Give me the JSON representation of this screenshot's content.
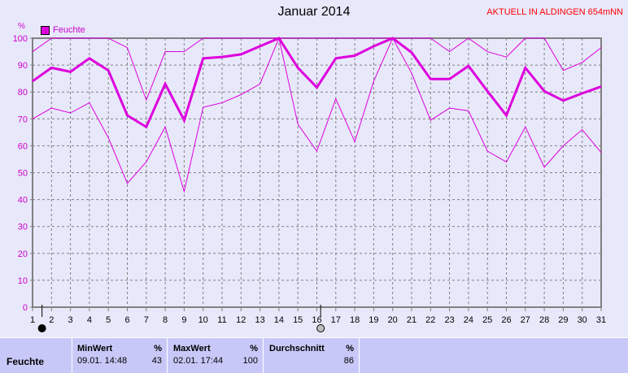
{
  "header": {
    "title": "Januar 2014",
    "station": "AKTUELL IN ALDINGEN 654mNN"
  },
  "colors": {
    "series": "#dd00dd",
    "background": "#e8e8fb",
    "grid": "#808080",
    "station": "#ff0000",
    "table": "#c8c8f8"
  },
  "chart_data": {
    "type": "line",
    "title": "Januar 2014",
    "ylabel": "%",
    "legend": {
      "label": "Feuchte",
      "placement": "top-left"
    },
    "xlim": [
      1,
      31
    ],
    "ylim": [
      0,
      100
    ],
    "x": [
      1,
      2,
      3,
      4,
      5,
      6,
      7,
      8,
      9,
      10,
      11,
      12,
      13,
      14,
      15,
      16,
      17,
      18,
      19,
      20,
      21,
      22,
      23,
      24,
      25,
      26,
      27,
      28,
      29,
      30,
      31
    ],
    "yticks": [
      0,
      10,
      20,
      30,
      40,
      50,
      60,
      70,
      80,
      90,
      100
    ],
    "grid": true,
    "series": [
      {
        "role": "max",
        "values": [
          95,
          100,
          100,
          100,
          100,
          96.5,
          77,
          95,
          95,
          100,
          100,
          100,
          100,
          100,
          100,
          100,
          100,
          100,
          100,
          100,
          100,
          100,
          95,
          100,
          95,
          93,
          100,
          100,
          88,
          91,
          96.5
        ]
      },
      {
        "role": "average",
        "values": [
          84,
          89,
          87.5,
          92.5,
          88,
          71.3,
          67,
          83,
          69.5,
          92.5,
          93,
          94,
          97,
          100,
          89,
          81.7,
          92.5,
          93.5,
          97,
          100,
          94.7,
          84.8,
          84.8,
          89.7,
          80.3,
          71.3,
          89,
          80.3,
          76.8,
          79.5,
          82
        ]
      },
      {
        "role": "min",
        "values": [
          70,
          74,
          72.2,
          76,
          63,
          46,
          54,
          67,
          43,
          74.3,
          76,
          79,
          83,
          100,
          68,
          58,
          77.5,
          61.5,
          84,
          100,
          87,
          69.5,
          74,
          73,
          58,
          54,
          67,
          52,
          60,
          66,
          57.5
        ]
      }
    ],
    "moon_markers": [
      {
        "day": 1.5,
        "phase": "new-moon"
      },
      {
        "day": 16.2,
        "phase": "full-moon"
      }
    ]
  },
  "table": {
    "row_label": "Feuchte",
    "min": {
      "header": "MinWert",
      "unit": "%",
      "time": "09.01.  14:48",
      "value": "43"
    },
    "max": {
      "header": "MaxWert",
      "unit": "%",
      "time": "02.01.  17:44",
      "value": "100"
    },
    "avg": {
      "header": "Durchschnitt",
      "unit": "%",
      "value": "86"
    }
  }
}
